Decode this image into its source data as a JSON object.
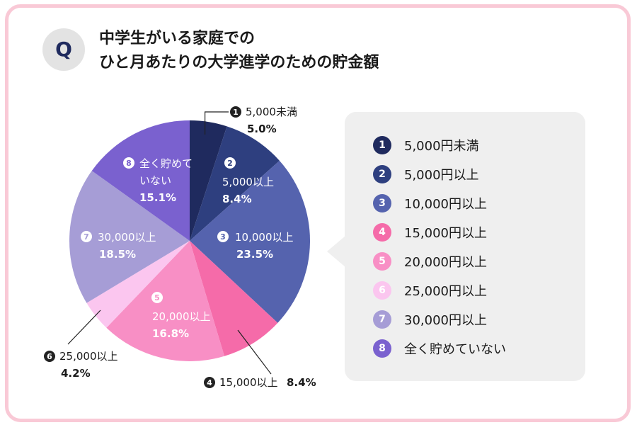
{
  "header": {
    "q_mark": "Q",
    "title_line1": "中学生がいる家庭での",
    "title_line2": "ひと月あたりの大学進学のための貯金額"
  },
  "chart_data": {
    "type": "pie",
    "start": "12 o'clock, clockwise",
    "slices": [
      {
        "num": "1",
        "label": "5,000未満",
        "legend": "5,000円未満",
        "value": 5.0,
        "value_label": "5.0%",
        "color": "#1f2a5e"
      },
      {
        "num": "2",
        "label": "5,000以上",
        "legend": "5,000円以上",
        "value": 8.4,
        "value_label": "8.4%",
        "color": "#2e3f7f"
      },
      {
        "num": "3",
        "label": "10,000以上",
        "legend": "10,000円以上",
        "value": 23.5,
        "value_label": "23.5%",
        "color": "#5563ae"
      },
      {
        "num": "4",
        "label": "15,000以上",
        "legend": "15,000円以上",
        "value": 8.4,
        "value_label": "8.4%",
        "color": "#f56ba9"
      },
      {
        "num": "5",
        "label": "20,000以上",
        "legend": "20,000円以上",
        "value": 16.8,
        "value_label": "16.8%",
        "color": "#f88fc5"
      },
      {
        "num": "6",
        "label": "25,000以上",
        "legend": "25,000円以上",
        "value": 4.2,
        "value_label": "4.2%",
        "color": "#fbc6ef"
      },
      {
        "num": "7",
        "label": "30,000以上",
        "legend": "30,000円以上",
        "value": 18.5,
        "value_label": "18.5%",
        "color": "#a69dd6"
      },
      {
        "num": "8",
        "label": "全く貯めて\nいない",
        "legend": "全く貯めていない",
        "value": 15.1,
        "value_label": "15.1%",
        "color": "#7a61cf"
      }
    ]
  }
}
